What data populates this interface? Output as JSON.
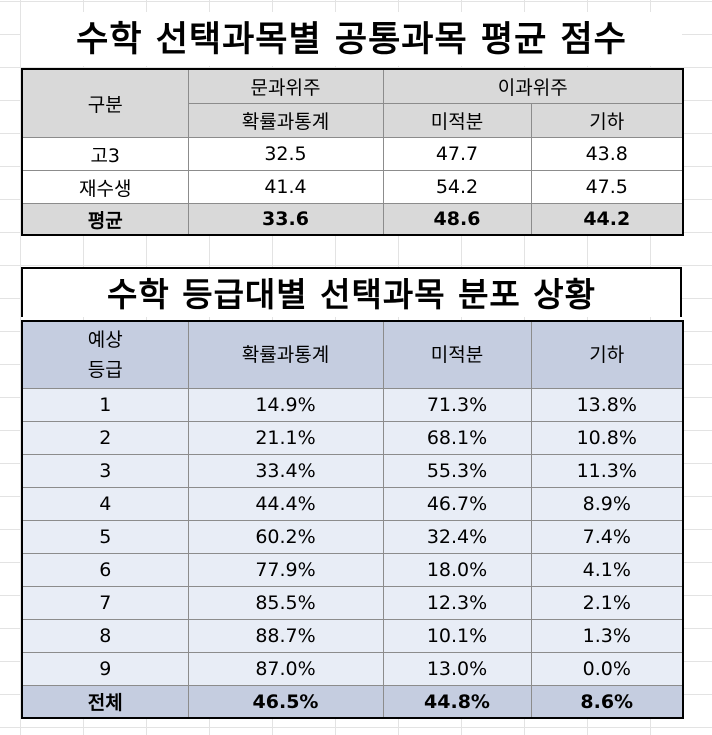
{
  "table1": {
    "title": "수학 선택과목별 공통과목 평균 점수",
    "header": {
      "group_label": "구분",
      "humanities_group": "문과위주",
      "science_group": "이과위주",
      "subjects": [
        "확률과통계",
        "미적분",
        "기하"
      ]
    },
    "rows": [
      {
        "label": "고3",
        "values": [
          "32.5",
          "47.7",
          "43.8"
        ]
      },
      {
        "label": "재수생",
        "values": [
          "41.4",
          "54.2",
          "47.5"
        ]
      }
    ],
    "average": {
      "label": "평균",
      "values": [
        "33.6",
        "48.6",
        "44.2"
      ]
    }
  },
  "table2": {
    "title": "수학 등급대별 선택과목 분포 상황",
    "header": {
      "grade_label_line1": "예상",
      "grade_label_line2": "등급",
      "subjects": [
        "확률과통계",
        "미적분",
        "기하"
      ]
    },
    "rows": [
      {
        "grade": "1",
        "values": [
          "14.9%",
          "71.3%",
          "13.8%"
        ]
      },
      {
        "grade": "2",
        "values": [
          "21.1%",
          "68.1%",
          "10.8%"
        ]
      },
      {
        "grade": "3",
        "values": [
          "33.4%",
          "55.3%",
          "11.3%"
        ]
      },
      {
        "grade": "4",
        "values": [
          "44.4%",
          "46.7%",
          "8.9%"
        ]
      },
      {
        "grade": "5",
        "values": [
          "60.2%",
          "32.4%",
          "7.4%"
        ]
      },
      {
        "grade": "6",
        "values": [
          "77.9%",
          "18.0%",
          "4.1%"
        ]
      },
      {
        "grade": "7",
        "values": [
          "85.5%",
          "12.3%",
          "2.1%"
        ]
      },
      {
        "grade": "8",
        "values": [
          "88.7%",
          "10.1%",
          "1.3%"
        ]
      },
      {
        "grade": "9",
        "values": [
          "87.0%",
          "13.0%",
          "0.0%"
        ]
      }
    ],
    "total": {
      "label": "전체",
      "values": [
        "46.5%",
        "44.8%",
        "8.6%"
      ]
    }
  }
}
